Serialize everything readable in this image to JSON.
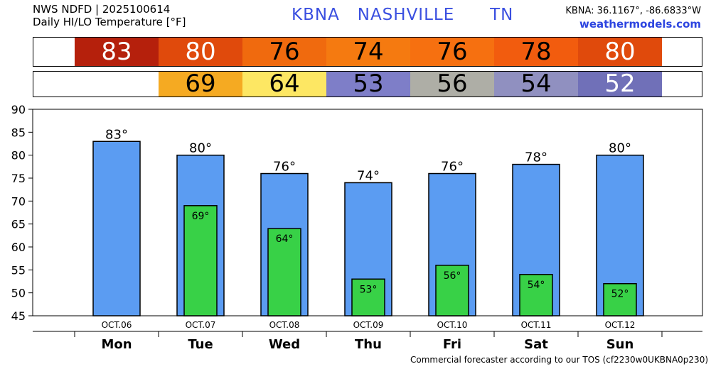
{
  "header": {
    "line1": "NWS NDFD | 2025100614",
    "line2": "Daily HI/LO Temperature [°F]",
    "station_title": "KBNA   NASHVILLE      TN",
    "coords": "KBNA: 36.1167°, -86.6833°W",
    "site": "weathermodels.com"
  },
  "footer": {
    "text": "Commercial forecaster according to our TOS (cf2230w0UKBNA0p230)"
  },
  "colors": {
    "hi_bar": "#5b9cf2",
    "lo_bar": "#38d147",
    "hi_cells": [
      "#b5200c",
      "#e04a0c",
      "#f06a0e",
      "#f57a10",
      "#f67010",
      "#f25c0e",
      "#e04a0c"
    ],
    "lo_cells": [
      null,
      "#f5aa22",
      "#fde763",
      "#7e7ec8",
      "#aeaea6",
      "#9090c0",
      "#7070b8"
    ],
    "lo_text": [
      null,
      "#000",
      "#000",
      "#000",
      "#000",
      "#000",
      "#fff"
    ]
  },
  "chart_data": {
    "type": "bar",
    "categories": [
      "Mon",
      "Tue",
      "Wed",
      "Thu",
      "Fri",
      "Sat",
      "Sun"
    ],
    "dates": [
      "OCT.06",
      "OCT.07",
      "OCT.08",
      "OCT.09",
      "OCT.10",
      "OCT.11",
      "OCT.12"
    ],
    "series": [
      {
        "values": [
          83,
          80,
          76,
          74,
          76,
          78,
          80
        ]
      },
      {
        "values": [
          null,
          69,
          64,
          53,
          56,
          54,
          52
        ]
      }
    ],
    "ylim": [
      45,
      90
    ],
    "yticks": [
      45,
      50,
      55,
      60,
      65,
      70,
      75,
      80,
      85,
      90
    ],
    "grid": false,
    "hi_labels": [
      "83°",
      "80°",
      "76°",
      "74°",
      "76°",
      "78°",
      "80°"
    ],
    "lo_labels": [
      null,
      "69°",
      "64°",
      "53°",
      "56°",
      "54°",
      "52°"
    ],
    "hi_strip": [
      "83",
      "80",
      "76",
      "74",
      "76",
      "78",
      "80"
    ],
    "lo_strip": [
      null,
      "69",
      "64",
      "53",
      "56",
      "54",
      "52"
    ]
  }
}
